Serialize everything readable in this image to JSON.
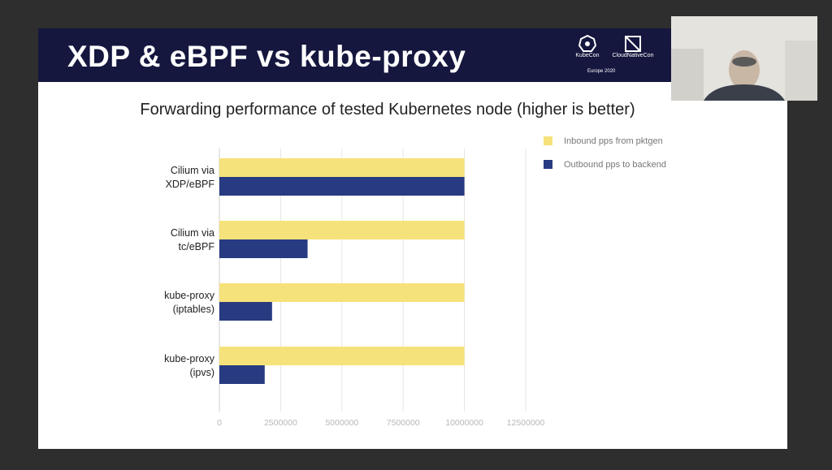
{
  "slide": {
    "title": "XDP & eBPF vs kube-proxy",
    "logos": {
      "kubecon": "KubeCon",
      "cloudnativecon": "CloudNativeCon",
      "event": "Europe 2020"
    }
  },
  "colors": {
    "header_bg": "#15173f",
    "inbound": "#f6e27a",
    "outbound": "#283b82"
  },
  "chart_data": {
    "type": "bar",
    "orientation": "horizontal",
    "title": "Forwarding performance of tested Kubernetes node (higher is better)",
    "categories": [
      "Cilium via XDP/eBPF",
      "Cilium via tc/eBPF",
      "kube-proxy (iptables)",
      "kube-proxy (ipvs)"
    ],
    "category_lines": [
      [
        "Cilium via",
        "XDP/eBPF"
      ],
      [
        "Cilium via",
        "tc/eBPF"
      ],
      [
        "kube-proxy",
        "(iptables)"
      ],
      [
        "kube-proxy",
        "(ipvs)"
      ]
    ],
    "series": [
      {
        "name": "Inbound pps from pktgen",
        "color": "#f6e27a",
        "values": [
          10000000,
          10000000,
          10000000,
          10000000
        ]
      },
      {
        "name": "Outbound pps to backend",
        "color": "#283b82",
        "values": [
          10000000,
          3600000,
          2150000,
          1850000
        ]
      }
    ],
    "xticks": [
      "0",
      "2500000",
      "5000000",
      "7500000",
      "10000000",
      "12500000"
    ],
    "xlim": [
      0,
      12500000
    ],
    "grid": true,
    "legend": "right"
  },
  "webcam": {
    "icon": "presenter-webcam"
  }
}
